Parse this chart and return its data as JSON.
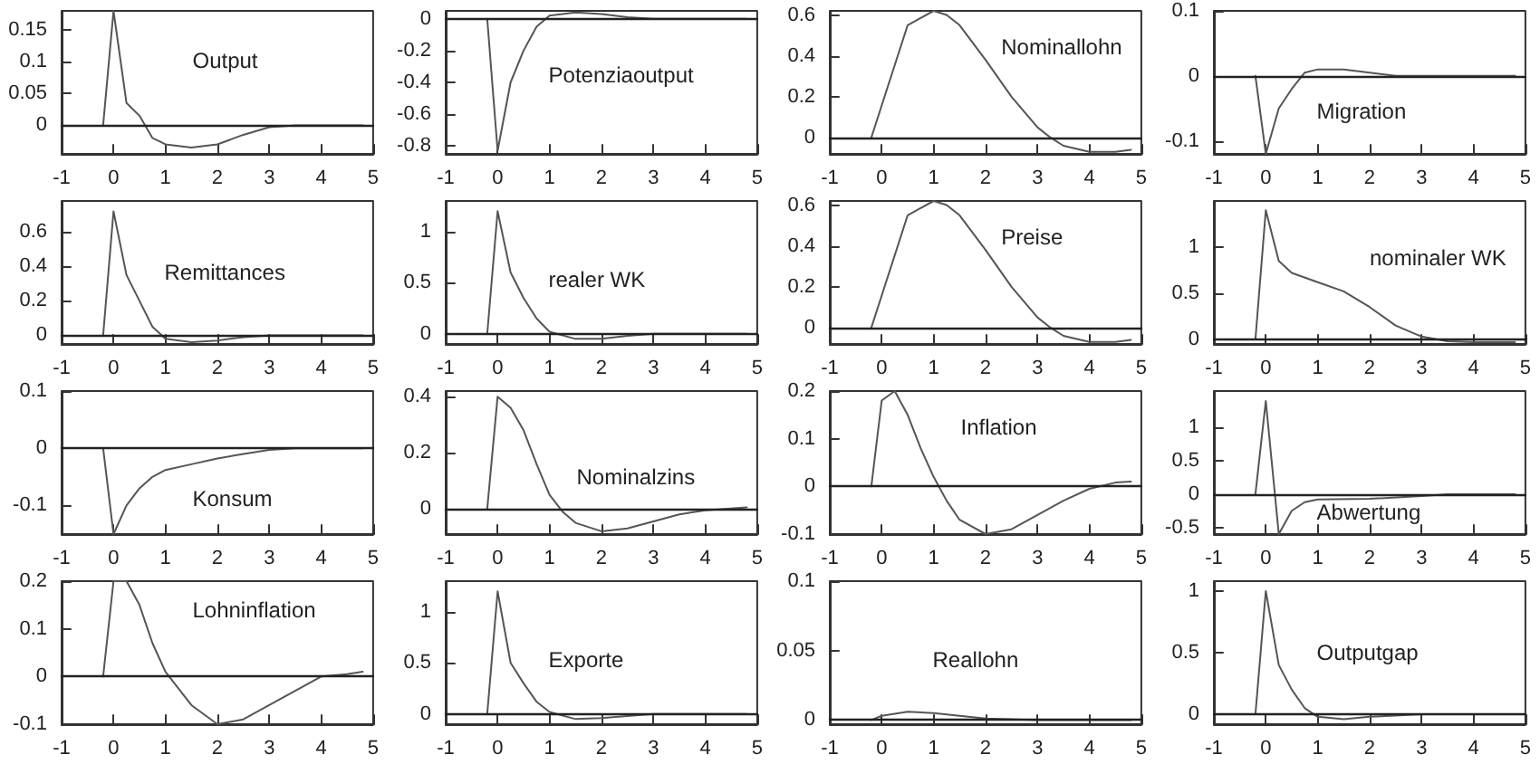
{
  "chart_data": [
    {
      "type": "line",
      "x": [
        -0.2,
        0,
        0.25,
        0.5,
        0.75,
        1,
        1.5,
        2,
        2.5,
        3,
        3.5,
        4.8
      ],
      "values": [
        0,
        0.18,
        0.035,
        0.015,
        -0.02,
        -0.03,
        -0.035,
        -0.03,
        -0.015,
        -0.003,
        0,
        0
      ],
      "color": "#555555",
      "xlim": [
        -1,
        5
      ],
      "xticks": [
        -1,
        0,
        1,
        2,
        3,
        4,
        5
      ],
      "ylim": [
        -0.045,
        0.18
      ],
      "yticks": [
        0,
        0.05,
        0.1,
        0.15
      ],
      "ref_lines": [
        {
          "axis": "y",
          "value": 0
        }
      ],
      "annotations": [
        "Output"
      ]
    },
    {
      "type": "line",
      "x": [
        -0.2,
        0,
        0.25,
        0.5,
        0.75,
        1,
        1.5,
        2,
        2.5,
        3,
        4.8
      ],
      "values": [
        0,
        -0.83,
        -0.4,
        -0.2,
        -0.05,
        0.02,
        0.04,
        0.03,
        0.01,
        0,
        0
      ],
      "color": "#555555",
      "xlim": [
        -1,
        5
      ],
      "xticks": [
        -1,
        0,
        1,
        2,
        3,
        4,
        5
      ],
      "ylim": [
        -0.85,
        0.05
      ],
      "yticks": [
        -0.8,
        -0.6,
        -0.4,
        -0.2,
        0
      ],
      "ref_lines": [
        {
          "axis": "y",
          "value": 0
        }
      ],
      "annotations": [
        "Potenziaoutput"
      ]
    },
    {
      "type": "line",
      "x": [
        -0.2,
        0.5,
        1,
        1.25,
        1.5,
        2,
        2.5,
        3,
        3.25,
        3.5,
        4,
        4.5,
        4.8
      ],
      "values": [
        0,
        0.55,
        0.62,
        0.6,
        0.55,
        0.38,
        0.2,
        0.05,
        0,
        -0.04,
        -0.07,
        -0.07,
        -0.06
      ],
      "color": "#555555",
      "xlim": [
        -1,
        5
      ],
      "xticks": [
        -1,
        0,
        1,
        2,
        3,
        4,
        5
      ],
      "ylim": [
        -0.08,
        0.62
      ],
      "yticks": [
        0,
        0.2,
        0.4,
        0.6
      ],
      "ref_lines": [
        {
          "axis": "y",
          "value": 0
        }
      ],
      "annotations": [
        "Nominallohn"
      ]
    },
    {
      "type": "line",
      "x": [
        -0.2,
        0,
        0.25,
        0.5,
        0.75,
        1,
        1.5,
        2,
        2.5,
        4.8
      ],
      "values": [
        0,
        -0.12,
        -0.05,
        -0.02,
        0.005,
        0.01,
        0.01,
        0.005,
        0,
        0
      ],
      "color": "#555555",
      "xlim": [
        -1,
        5
      ],
      "xticks": [
        -1,
        0,
        1,
        2,
        3,
        4,
        5
      ],
      "ylim": [
        -0.12,
        0.1
      ],
      "yticks": [
        -0.1,
        0,
        0.1
      ],
      "ref_lines": [
        {
          "axis": "y",
          "value": 0
        }
      ],
      "annotations": [
        "Migration"
      ]
    },
    {
      "type": "line",
      "x": [
        -0.2,
        0,
        0.25,
        0.5,
        0.75,
        1,
        1.5,
        2,
        2.5,
        3,
        4.8
      ],
      "values": [
        0,
        0.72,
        0.35,
        0.2,
        0.05,
        -0.02,
        -0.04,
        -0.03,
        -0.01,
        0,
        0
      ],
      "color": "#555555",
      "xlim": [
        -1,
        5
      ],
      "xticks": [
        -1,
        0,
        1,
        2,
        3,
        4,
        5
      ],
      "ylim": [
        -0.05,
        0.78
      ],
      "yticks": [
        0,
        0.2,
        0.4,
        0.6
      ],
      "ref_lines": [
        {
          "axis": "y",
          "value": 0
        }
      ],
      "annotations": [
        "Remittances"
      ]
    },
    {
      "type": "line",
      "x": [
        -0.2,
        0,
        0.25,
        0.5,
        0.75,
        1,
        1.5,
        2,
        2.5,
        3,
        4.8
      ],
      "values": [
        0,
        1.2,
        0.6,
        0.35,
        0.15,
        0.02,
        -0.05,
        -0.05,
        -0.02,
        0,
        0
      ],
      "color": "#555555",
      "xlim": [
        -1,
        5
      ],
      "xticks": [
        -1,
        0,
        1,
        2,
        3,
        4,
        5
      ],
      "ylim": [
        -0.1,
        1.3
      ],
      "yticks": [
        0,
        0.5,
        1
      ],
      "ref_lines": [
        {
          "axis": "y",
          "value": 0
        }
      ],
      "annotations": [
        "realer WK"
      ]
    },
    {
      "type": "line",
      "x": [
        -0.2,
        0.5,
        1,
        1.25,
        1.5,
        2,
        2.5,
        3,
        3.25,
        3.5,
        4,
        4.5,
        4.8
      ],
      "values": [
        0,
        0.55,
        0.62,
        0.6,
        0.55,
        0.38,
        0.2,
        0.05,
        0,
        -0.04,
        -0.07,
        -0.07,
        -0.06
      ],
      "color": "#555555",
      "xlim": [
        -1,
        5
      ],
      "xticks": [
        -1,
        0,
        1,
        2,
        3,
        4,
        5
      ],
      "ylim": [
        -0.08,
        0.62
      ],
      "yticks": [
        0,
        0.2,
        0.4,
        0.6
      ],
      "ref_lines": [
        {
          "axis": "y",
          "value": 0
        }
      ],
      "annotations": [
        "Preise"
      ]
    },
    {
      "type": "line",
      "x": [
        -0.2,
        0,
        0.25,
        0.5,
        1,
        1.5,
        2,
        2.5,
        3,
        3.5,
        4,
        4.8
      ],
      "values": [
        0,
        1.4,
        0.85,
        0.72,
        0.62,
        0.52,
        0.35,
        0.15,
        0.03,
        -0.02,
        -0.03,
        -0.03
      ],
      "color": "#555555",
      "xlim": [
        -1,
        5
      ],
      "xticks": [
        -1,
        0,
        1,
        2,
        3,
        4,
        5
      ],
      "ylim": [
        -0.05,
        1.5
      ],
      "yticks": [
        0,
        0.5,
        1
      ],
      "ref_lines": [
        {
          "axis": "y",
          "value": 0
        }
      ],
      "annotations": [
        "nominaler WK"
      ]
    },
    {
      "type": "line",
      "x": [
        -0.2,
        0,
        0.25,
        0.5,
        0.75,
        1,
        1.5,
        2,
        2.5,
        3,
        3.5,
        4.8
      ],
      "values": [
        0,
        -0.15,
        -0.1,
        -0.07,
        -0.05,
        -0.038,
        -0.028,
        -0.018,
        -0.01,
        -0.003,
        0,
        0
      ],
      "color": "#555555",
      "xlim": [
        -1,
        5
      ],
      "xticks": [
        -1,
        0,
        1,
        2,
        3,
        4,
        5
      ],
      "ylim": [
        -0.15,
        0.1
      ],
      "yticks": [
        -0.1,
        0,
        0.1
      ],
      "ref_lines": [
        {
          "axis": "y",
          "value": 0
        }
      ],
      "annotations": [
        "Konsum"
      ]
    },
    {
      "type": "line",
      "x": [
        -0.2,
        0,
        0.25,
        0.5,
        0.75,
        1,
        1.25,
        1.5,
        2,
        2.5,
        3,
        3.5,
        4,
        4.8
      ],
      "values": [
        0,
        0.4,
        0.36,
        0.28,
        0.16,
        0.05,
        -0.01,
        -0.05,
        -0.08,
        -0.07,
        -0.045,
        -0.02,
        -0.005,
        0.005
      ],
      "color": "#555555",
      "xlim": [
        -1,
        5
      ],
      "xticks": [
        -1,
        0,
        1,
        2,
        3,
        4,
        5
      ],
      "ylim": [
        -0.09,
        0.42
      ],
      "yticks": [
        0,
        0.2,
        0.4
      ],
      "ref_lines": [
        {
          "axis": "y",
          "value": 0
        }
      ],
      "annotations": [
        "Nominalzins"
      ]
    },
    {
      "type": "line",
      "x": [
        -0.2,
        0,
        0.25,
        0.5,
        0.75,
        1,
        1.25,
        1.5,
        2,
        2.5,
        3,
        3.5,
        4,
        4.5,
        4.8
      ],
      "values": [
        0,
        0.18,
        0.2,
        0.15,
        0.08,
        0.02,
        -0.03,
        -0.07,
        -0.1,
        -0.09,
        -0.06,
        -0.03,
        -0.005,
        0.008,
        0.01
      ],
      "color": "#555555",
      "xlim": [
        -1,
        5
      ],
      "xticks": [
        -1,
        0,
        1,
        2,
        3,
        4,
        5
      ],
      "ylim": [
        -0.1,
        0.2
      ],
      "yticks": [
        -0.1,
        0,
        0.1,
        0.2
      ],
      "ref_lines": [
        {
          "axis": "y",
          "value": 0
        }
      ],
      "annotations": [
        "Inflation"
      ]
    },
    {
      "type": "line",
      "x": [
        -0.2,
        0,
        0.25,
        0.5,
        0.75,
        1,
        2,
        3,
        3.5,
        4.8
      ],
      "values": [
        0,
        1.4,
        -0.6,
        -0.25,
        -0.12,
        -0.08,
        -0.07,
        -0.03,
        0,
        0
      ],
      "color": "#555555",
      "xlim": [
        -1,
        5
      ],
      "xticks": [
        -1,
        0,
        1,
        2,
        3,
        4,
        5
      ],
      "ylim": [
        -0.6,
        1.55
      ],
      "yticks": [
        -0.5,
        0,
        0.5,
        1
      ],
      "ref_lines": [
        {
          "axis": "y",
          "value": 0
        }
      ],
      "annotations": [
        "Abwertung"
      ]
    },
    {
      "type": "line",
      "x": [
        -0.2,
        0,
        0.25,
        0.5,
        0.75,
        1,
        1.5,
        2,
        2.5,
        3,
        3.5,
        4,
        4.5,
        4.8
      ],
      "values": [
        0,
        0.2,
        0.2,
        0.15,
        0.07,
        0.01,
        -0.06,
        -0.1,
        -0.09,
        -0.06,
        -0.03,
        0,
        0.005,
        0.01
      ],
      "color": "#555555",
      "xlim": [
        -1,
        5
      ],
      "xticks": [
        -1,
        0,
        1,
        2,
        3,
        4,
        5
      ],
      "ylim": [
        -0.1,
        0.2
      ],
      "yticks": [
        -0.1,
        0,
        0.1,
        0.2
      ],
      "ref_lines": [
        {
          "axis": "y",
          "value": 0
        }
      ],
      "annotations": [
        "Lohninflation"
      ]
    },
    {
      "type": "line",
      "x": [
        -0.2,
        0,
        0.25,
        0.5,
        0.75,
        1,
        1.5,
        2,
        2.5,
        3,
        4.8
      ],
      "values": [
        0,
        1.2,
        0.5,
        0.3,
        0.12,
        0.02,
        -0.05,
        -0.04,
        -0.02,
        0,
        0
      ],
      "color": "#555555",
      "xlim": [
        -1,
        5
      ],
      "xticks": [
        -1,
        0,
        1,
        2,
        3,
        4,
        5
      ],
      "ylim": [
        -0.1,
        1.3
      ],
      "yticks": [
        0,
        0.5,
        1
      ],
      "ref_lines": [
        {
          "axis": "y",
          "value": 0
        }
      ],
      "annotations": [
        "Exporte"
      ]
    },
    {
      "type": "line",
      "x": [
        -0.2,
        0,
        0.5,
        1,
        1.5,
        2,
        3,
        4.8
      ],
      "values": [
        0,
        0.003,
        0.006,
        0.005,
        0.003,
        0.001,
        0,
        0
      ],
      "color": "#555555",
      "xlim": [
        -1,
        5
      ],
      "xticks": [
        -1,
        0,
        1,
        2,
        3,
        4,
        5
      ],
      "ylim": [
        -0.003,
        0.1
      ],
      "yticks": [
        0,
        0.05,
        0.1
      ],
      "ref_lines": [
        {
          "axis": "y",
          "value": 0
        }
      ],
      "annotations": [
        "Reallohn"
      ]
    },
    {
      "type": "line",
      "x": [
        -0.2,
        0,
        0.25,
        0.5,
        0.75,
        1,
        1.5,
        2,
        2.5,
        3,
        4.8
      ],
      "values": [
        0,
        1,
        0.4,
        0.2,
        0.05,
        -0.02,
        -0.04,
        -0.02,
        -0.01,
        0,
        0
      ],
      "color": "#555555",
      "xlim": [
        -1,
        5
      ],
      "xticks": [
        -1,
        0,
        1,
        2,
        3,
        4,
        5
      ],
      "ylim": [
        -0.08,
        1.08
      ],
      "yticks": [
        0,
        0.5,
        1
      ],
      "ref_lines": [
        {
          "axis": "y",
          "value": 0
        }
      ],
      "annotations": [
        "Outputgap"
      ]
    }
  ]
}
